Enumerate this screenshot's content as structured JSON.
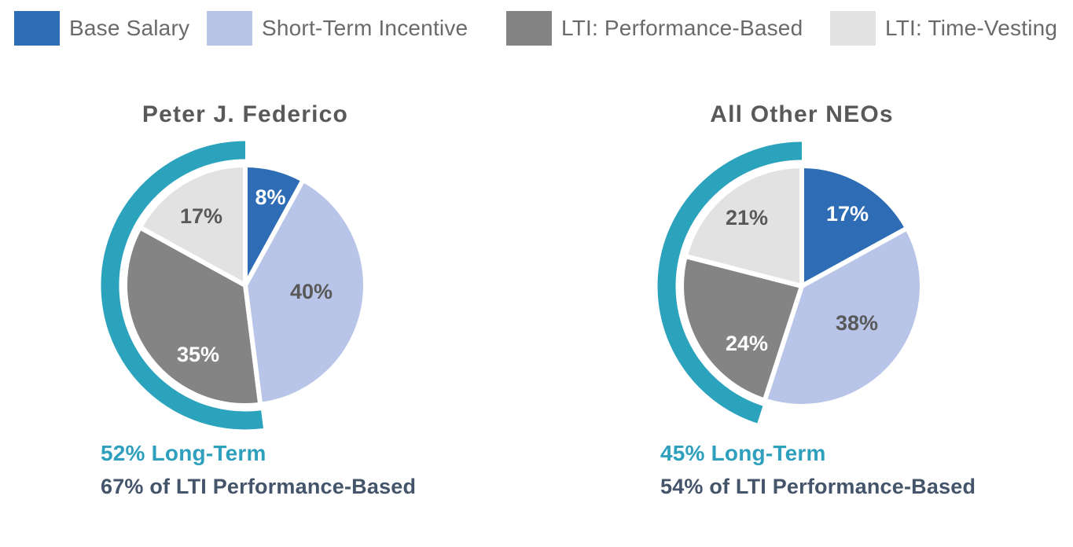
{
  "legend": {
    "items": [
      {
        "label": "Base Salary",
        "color": "#2E6CB5"
      },
      {
        "label": "Short-Term Incentive",
        "color": "#B8C5E8"
      },
      {
        "label": "LTI: Performance-Based",
        "color": "#848484"
      },
      {
        "label": "LTI: Time-Vesting",
        "color": "#E2E2E2"
      }
    ]
  },
  "chart_data": [
    {
      "type": "pie",
      "title": "Peter J. Federico",
      "categories": [
        "Base Salary",
        "Short-Term Incentive",
        "LTI: Performance-Based",
        "LTI: Time-Vesting"
      ],
      "values": [
        8,
        40,
        35,
        17
      ],
      "slices": [
        {
          "label": "Base Salary",
          "value": 8,
          "display": "8%",
          "color": "#2E6CB5",
          "label_color": "#FFFFFF",
          "label_pos": [
            32,
            -112
          ]
        },
        {
          "label": "Short-Term Incentive",
          "value": 40,
          "display": "40%",
          "color": "#B8C5E8",
          "label_color": "#595959",
          "label_pos": [
            84,
            8
          ]
        },
        {
          "label": "LTI: Performance-Based",
          "value": 35,
          "display": "35%",
          "color": "#848484",
          "label_color": "#FFFFFF",
          "label_pos": [
            -60,
            88
          ]
        },
        {
          "label": "LTI: Time-Vesting",
          "value": 17,
          "display": "17%",
          "color": "#E2E2E2",
          "label_color": "#595959",
          "label_pos": [
            -56,
            -88
          ]
        }
      ],
      "long_term_value": 52,
      "arc_color": "#2CA3BD",
      "notes": [
        {
          "text": "52% Long-Term",
          "color": "#2E9FBD"
        },
        {
          "text": "67% of LTI Performance-Based",
          "color": "#44546A"
        }
      ]
    },
    {
      "type": "pie",
      "title": "All Other NEOs",
      "categories": [
        "Base Salary",
        "Short-Term Incentive",
        "LTI: Performance-Based",
        "LTI: Time-Vesting"
      ],
      "values": [
        17,
        38,
        24,
        21
      ],
      "slices": [
        {
          "label": "Base Salary",
          "value": 17,
          "display": "17%",
          "color": "#2E6CB5",
          "label_color": "#FFFFFF",
          "label_pos": [
            58,
            -92
          ]
        },
        {
          "label": "Short-Term Incentive",
          "value": 38,
          "display": "38%",
          "color": "#B8C5E8",
          "label_color": "#595959",
          "label_pos": [
            70,
            47
          ]
        },
        {
          "label": "LTI: Performance-Based",
          "value": 24,
          "display": "24%",
          "color": "#848484",
          "label_color": "#FFFFFF",
          "label_pos": [
            -70,
            73
          ]
        },
        {
          "label": "LTI: Time-Vesting",
          "value": 21,
          "display": "21%",
          "color": "#E2E2E2",
          "label_color": "#595959",
          "label_pos": [
            -70,
            -87
          ]
        }
      ],
      "long_term_value": 45,
      "arc_color": "#2CA3BD",
      "notes": [
        {
          "text": "45% Long-Term",
          "color": "#2E9FBD"
        },
        {
          "text": "54% of LTI Performance-Based",
          "color": "#44546A"
        }
      ]
    }
  ],
  "layout_hints": {
    "legend_position": "top-left-row",
    "pie_start_angle": "12-o-clock-clockwise",
    "arc_coverage": "last-two-slices (long-term incentives)"
  }
}
